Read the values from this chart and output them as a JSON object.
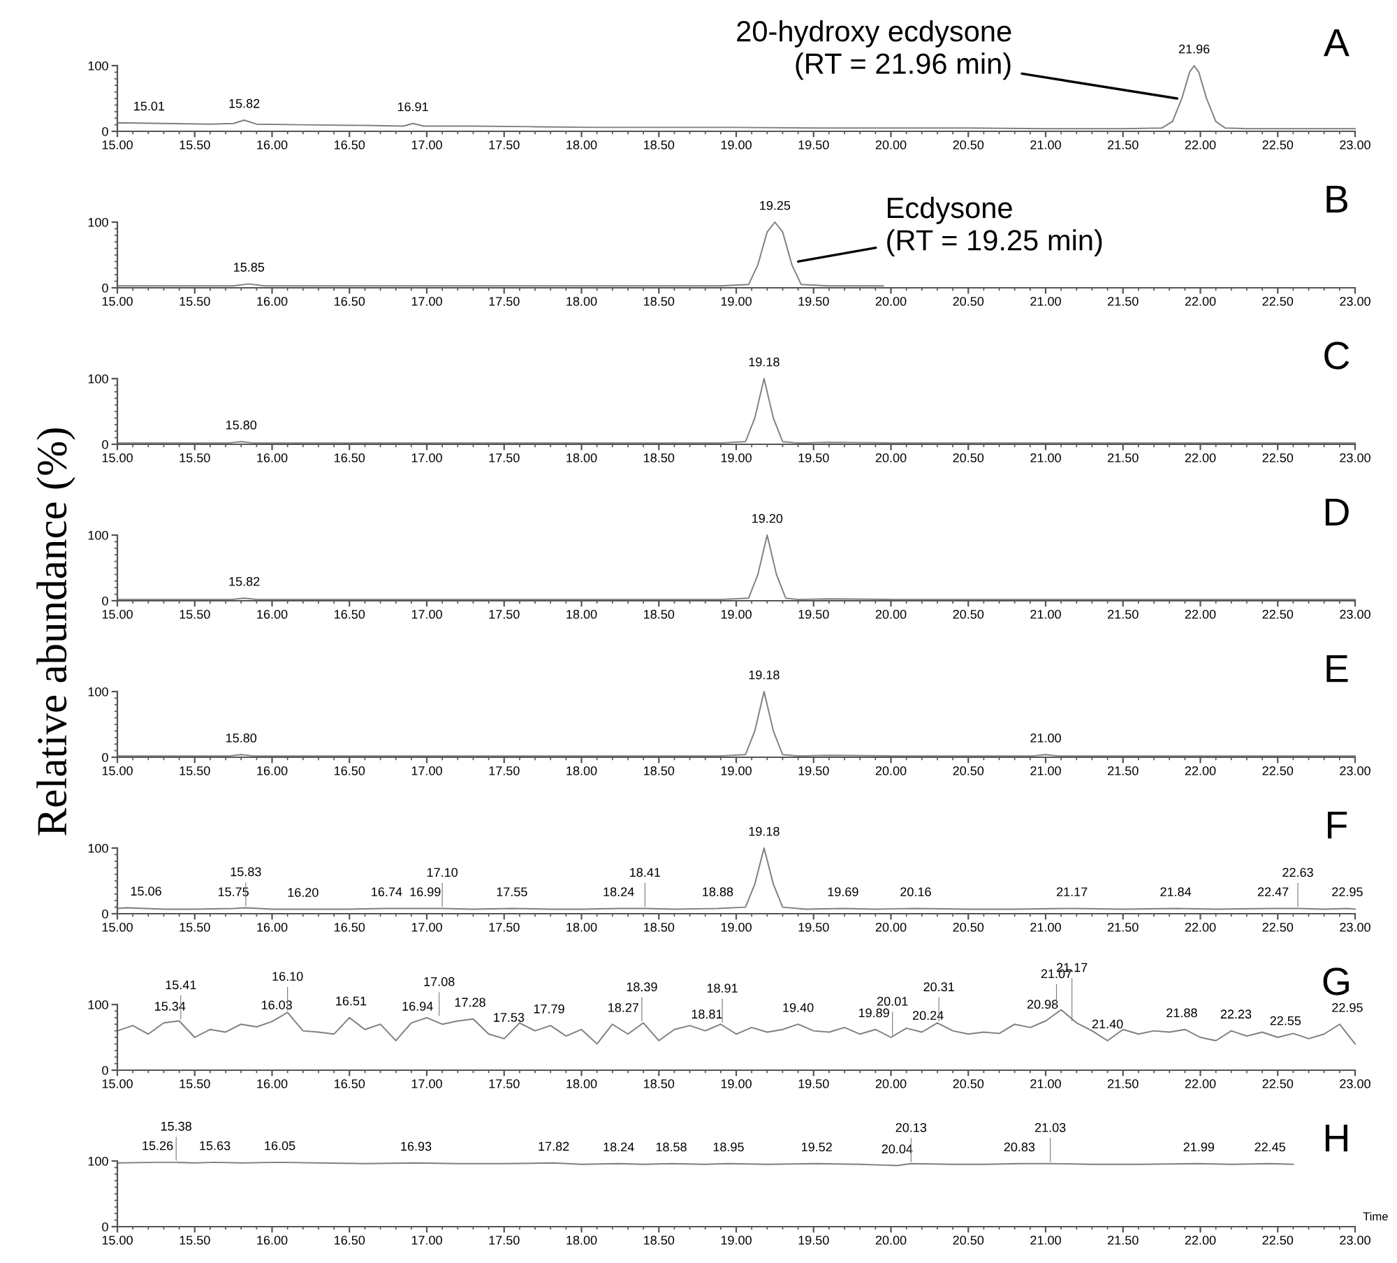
{
  "chart_data": [
    {
      "type": "line",
      "title": "A",
      "xlim": [
        15,
        23
      ],
      "ylim": [
        0,
        100
      ],
      "yticks": [
        0,
        100
      ],
      "xticks": [
        {
          "value": 15,
          "label": "15.00"
        },
        {
          "value": 15.5,
          "label": "15.50"
        },
        {
          "value": 16,
          "label": "16.00"
        },
        {
          "value": 16.5,
          "label": "16.50"
        },
        {
          "value": 17,
          "label": "17.00"
        },
        {
          "value": 17.5,
          "label": "17.50"
        },
        {
          "value": 18,
          "label": "18.00"
        },
        {
          "value": 18.5,
          "label": "18.50"
        },
        {
          "value": 19,
          "label": "19.00"
        },
        {
          "value": 19.5,
          "label": "19.50"
        },
        {
          "value": 20,
          "label": "20.00"
        },
        {
          "value": 20.5,
          "label": "20.50"
        },
        {
          "value": 21,
          "label": "21.00"
        },
        {
          "value": 21.5,
          "label": "21.50"
        },
        {
          "value": 22,
          "label": "22.00"
        },
        {
          "value": 22.5,
          "label": "22.50"
        },
        {
          "value": 23,
          "label": "23.00"
        }
      ],
      "series": [
        {
          "color": "#7f7f7f",
          "x": [
            15.0,
            15.01,
            15.3,
            15.6,
            15.75,
            15.82,
            15.9,
            16.2,
            16.6,
            16.85,
            16.91,
            16.98,
            17.3,
            17.7,
            18.1,
            18.5,
            19.0,
            19.5,
            20.0,
            20.5,
            21.0,
            21.5,
            21.75,
            21.82,
            21.88,
            21.93,
            21.96,
            21.99,
            22.04,
            22.1,
            22.16,
            22.3,
            22.6,
            23.0
          ],
          "values": [
            12,
            13,
            12,
            11,
            12,
            17,
            11,
            10,
            9,
            8,
            12,
            8,
            8,
            7,
            6,
            6,
            6,
            5,
            5,
            5,
            4,
            4,
            5,
            15,
            50,
            90,
            100,
            90,
            50,
            15,
            5,
            4,
            4,
            4
          ]
        }
      ],
      "annotations": [
        {
          "text": "15.01",
          "x": 15.01,
          "y": 13
        },
        {
          "text": "15.82",
          "x": 15.82,
          "y": 17
        },
        {
          "text": "16.91",
          "x": 16.91,
          "y": 12
        },
        {
          "text": "21.96",
          "x": 21.96,
          "y": 100
        },
        {
          "text": "20-hydroxy ecdysone\n(RT = 21.96 min)",
          "x": 21.85,
          "y": 50
        }
      ]
    },
    {
      "type": "line",
      "title": "B",
      "xlim": [
        15,
        23
      ],
      "ylim": [
        0,
        100
      ],
      "yticks": [
        0,
        100
      ],
      "xticks": [
        {
          "value": 15,
          "label": "15.00"
        },
        {
          "value": 15.5,
          "label": "15.50"
        },
        {
          "value": 16,
          "label": "16.00"
        },
        {
          "value": 16.5,
          "label": "16.50"
        },
        {
          "value": 17,
          "label": "17.00"
        },
        {
          "value": 17.5,
          "label": "17.50"
        },
        {
          "value": 18,
          "label": "18.00"
        },
        {
          "value": 18.5,
          "label": "18.50"
        },
        {
          "value": 19,
          "label": "19.00"
        },
        {
          "value": 19.5,
          "label": "19.50"
        },
        {
          "value": 20,
          "label": "20.00"
        },
        {
          "value": 20.5,
          "label": "20.50"
        },
        {
          "value": 21,
          "label": "21.00"
        },
        {
          "value": 21.5,
          "label": "21.50"
        },
        {
          "value": 22,
          "label": "22.00"
        },
        {
          "value": 22.5,
          "label": "22.50"
        },
        {
          "value": 23,
          "label": "23.00"
        }
      ],
      "series": [
        {
          "color": "#7f7f7f",
          "x": [
            15.0,
            15.4,
            15.75,
            15.85,
            15.95,
            16.5,
            17.0,
            17.5,
            18.0,
            18.5,
            18.9,
            19.08,
            19.14,
            19.2,
            19.25,
            19.3,
            19.36,
            19.42,
            19.6,
            19.95
          ],
          "values": [
            3,
            3,
            3,
            6,
            3,
            3,
            3,
            3,
            3,
            3,
            3,
            5,
            35,
            85,
            100,
            85,
            35,
            5,
            3,
            3
          ]
        }
      ],
      "annotations": [
        {
          "text": "15.85",
          "x": 15.85,
          "y": 6
        },
        {
          "text": "19.25",
          "x": 19.25,
          "y": 100
        },
        {
          "text": "Ecdysone\n(RT = 19.25 min)",
          "x": 19.4,
          "y": 40
        }
      ]
    },
    {
      "type": "line",
      "title": "C",
      "xlim": [
        15,
        23
      ],
      "ylim": [
        0,
        100
      ],
      "yticks": [
        0,
        100
      ],
      "xticks": [
        {
          "value": 15,
          "label": "15.00"
        },
        {
          "value": 15.5,
          "label": "15.50"
        },
        {
          "value": 16,
          "label": "16.00"
        },
        {
          "value": 16.5,
          "label": "16.50"
        },
        {
          "value": 17,
          "label": "17.00"
        },
        {
          "value": 17.5,
          "label": "17.50"
        },
        {
          "value": 18,
          "label": "18.00"
        },
        {
          "value": 18.5,
          "label": "18.50"
        },
        {
          "value": 19,
          "label": "19.00"
        },
        {
          "value": 19.5,
          "label": "19.50"
        },
        {
          "value": 20,
          "label": "20.00"
        },
        {
          "value": 20.5,
          "label": "20.50"
        },
        {
          "value": 21,
          "label": "21.00"
        },
        {
          "value": 21.5,
          "label": "21.50"
        },
        {
          "value": 22,
          "label": "22.00"
        },
        {
          "value": 22.5,
          "label": "22.50"
        },
        {
          "value": 23,
          "label": "23.00"
        }
      ],
      "series": [
        {
          "color": "#7f7f7f",
          "x": [
            15.0,
            15.5,
            15.72,
            15.8,
            15.88,
            16.5,
            17.0,
            17.5,
            18.0,
            18.5,
            18.9,
            19.06,
            19.12,
            19.18,
            19.24,
            19.3,
            19.4,
            19.6,
            20.0,
            20.5,
            21.0,
            21.5,
            22.0,
            22.5,
            23.0
          ],
          "values": [
            2,
            2,
            2,
            4,
            2,
            2,
            2,
            2,
            2,
            2,
            2,
            4,
            40,
            100,
            40,
            4,
            2,
            3,
            2,
            2,
            2,
            2,
            2,
            2,
            2
          ]
        }
      ],
      "annotations": [
        {
          "text": "15.80",
          "x": 15.8,
          "y": 4
        },
        {
          "text": "19.18",
          "x": 19.18,
          "y": 100
        }
      ]
    },
    {
      "type": "line",
      "title": "D",
      "ylabel": "Relative abundance (%)",
      "xlim": [
        15,
        23
      ],
      "ylim": [
        0,
        100
      ],
      "yticks": [
        0,
        100
      ],
      "xticks": [
        {
          "value": 15,
          "label": "15.00"
        },
        {
          "value": 15.5,
          "label": "15.50"
        },
        {
          "value": 16,
          "label": "16.00"
        },
        {
          "value": 16.5,
          "label": "16.50"
        },
        {
          "value": 17,
          "label": "17.00"
        },
        {
          "value": 17.5,
          "label": "17.50"
        },
        {
          "value": 18,
          "label": "18.00"
        },
        {
          "value": 18.5,
          "label": "18.50"
        },
        {
          "value": 19,
          "label": "19.00"
        },
        {
          "value": 19.5,
          "label": "19.50"
        },
        {
          "value": 20,
          "label": "20.00"
        },
        {
          "value": 20.5,
          "label": "20.50"
        },
        {
          "value": 21,
          "label": "21.00"
        },
        {
          "value": 21.5,
          "label": "21.50"
        },
        {
          "value": 22,
          "label": "22.00"
        },
        {
          "value": 22.5,
          "label": "22.50"
        },
        {
          "value": 23,
          "label": "23.00"
        }
      ],
      "series": [
        {
          "color": "#7f7f7f",
          "x": [
            15.0,
            15.5,
            15.74,
            15.82,
            15.9,
            16.5,
            17.0,
            17.5,
            18.0,
            18.5,
            18.9,
            19.08,
            19.14,
            19.2,
            19.26,
            19.32,
            19.4,
            19.6,
            20.0,
            20.5,
            21.0,
            21.5,
            22.0,
            22.5,
            23.0
          ],
          "values": [
            2,
            2,
            2,
            4,
            2,
            2,
            2,
            2,
            2,
            2,
            2,
            4,
            40,
            100,
            40,
            4,
            2,
            3,
            2,
            2,
            2,
            2,
            2,
            2,
            2
          ]
        }
      ],
      "annotations": [
        {
          "text": "15.82",
          "x": 15.82,
          "y": 4
        },
        {
          "text": "19.20",
          "x": 19.2,
          "y": 100
        }
      ]
    },
    {
      "type": "line",
      "title": "E",
      "xlim": [
        15,
        23
      ],
      "ylim": [
        0,
        100
      ],
      "yticks": [
        0,
        100
      ],
      "xticks": [
        {
          "value": 15,
          "label": "15.00"
        },
        {
          "value": 15.5,
          "label": "15.50"
        },
        {
          "value": 16,
          "label": "16.00"
        },
        {
          "value": 16.5,
          "label": "16.50"
        },
        {
          "value": 17,
          "label": "17.00"
        },
        {
          "value": 17.5,
          "label": "17.50"
        },
        {
          "value": 18,
          "label": "18.00"
        },
        {
          "value": 18.5,
          "label": "18.50"
        },
        {
          "value": 19,
          "label": "19.00"
        },
        {
          "value": 19.5,
          "label": "19.50"
        },
        {
          "value": 20,
          "label": "20.00"
        },
        {
          "value": 20.5,
          "label": "20.50"
        },
        {
          "value": 21,
          "label": "21.00"
        },
        {
          "value": 21.5,
          "label": "21.50"
        },
        {
          "value": 22,
          "label": "22.00"
        },
        {
          "value": 22.5,
          "label": "22.50"
        },
        {
          "value": 23,
          "label": "23.00"
        }
      ],
      "series": [
        {
          "color": "#7f7f7f",
          "x": [
            15.0,
            15.5,
            15.72,
            15.8,
            15.88,
            16.5,
            17.0,
            17.5,
            18.0,
            18.5,
            18.9,
            19.06,
            19.12,
            19.18,
            19.24,
            19.3,
            19.4,
            19.6,
            20.0,
            20.5,
            20.92,
            21.0,
            21.08,
            21.5,
            22.0,
            22.5,
            23.0
          ],
          "values": [
            2,
            2,
            2,
            4,
            2,
            2,
            2,
            2,
            2,
            2,
            2,
            4,
            40,
            100,
            40,
            4,
            2,
            3,
            2,
            2,
            2,
            4,
            2,
            2,
            2,
            2,
            2
          ]
        }
      ],
      "annotations": [
        {
          "text": "15.80",
          "x": 15.8,
          "y": 4
        },
        {
          "text": "19.18",
          "x": 19.18,
          "y": 100
        },
        {
          "text": "21.00",
          "x": 21.0,
          "y": 4
        }
      ]
    },
    {
      "type": "line",
      "title": "F",
      "xlim": [
        15,
        23
      ],
      "ylim": [
        0,
        100
      ],
      "yticks": [
        0,
        100
      ],
      "xticks": [
        {
          "value": 15,
          "label": "15.00"
        },
        {
          "value": 15.5,
          "label": "15.50"
        },
        {
          "value": 16,
          "label": "16.00"
        },
        {
          "value": 16.5,
          "label": "16.50"
        },
        {
          "value": 17,
          "label": "17.00"
        },
        {
          "value": 17.5,
          "label": "17.50"
        },
        {
          "value": 18,
          "label": "18.00"
        },
        {
          "value": 18.5,
          "label": "18.50"
        },
        {
          "value": 19,
          "label": "19.00"
        },
        {
          "value": 19.5,
          "label": "19.50"
        },
        {
          "value": 20,
          "label": "20.00"
        },
        {
          "value": 20.5,
          "label": "20.50"
        },
        {
          "value": 21,
          "label": "21.00"
        },
        {
          "value": 21.5,
          "label": "21.50"
        },
        {
          "value": 22,
          "label": "22.00"
        },
        {
          "value": 22.5,
          "label": "22.50"
        },
        {
          "value": 23,
          "label": "23.00"
        }
      ],
      "series": [
        {
          "color": "#7f7f7f",
          "x": [
            15.0,
            15.06,
            15.3,
            15.5,
            15.75,
            15.83,
            16.0,
            16.2,
            16.5,
            16.74,
            16.99,
            17.1,
            17.3,
            17.55,
            17.8,
            18.0,
            18.24,
            18.41,
            18.6,
            18.88,
            19.06,
            19.12,
            19.18,
            19.24,
            19.3,
            19.45,
            19.69,
            19.9,
            20.16,
            20.5,
            20.8,
            21.17,
            21.5,
            21.84,
            22.1,
            22.47,
            22.63,
            22.8,
            22.95,
            23.0
          ],
          "values": [
            8,
            9,
            7,
            7,
            8,
            9,
            7,
            7,
            7,
            8,
            8,
            8,
            7,
            8,
            7,
            7,
            8,
            8,
            7,
            8,
            10,
            45,
            100,
            45,
            10,
            7,
            8,
            7,
            8,
            7,
            7,
            8,
            7,
            8,
            7,
            8,
            8,
            7,
            8,
            7
          ]
        }
      ],
      "annotations": [
        {
          "text": "15.06",
          "x": 15.06,
          "y": 9
        },
        {
          "text": "15.75",
          "x": 15.75,
          "y": 8
        },
        {
          "text": "15.83",
          "x": 15.83,
          "y": 9
        },
        {
          "text": "16.20",
          "x": 16.2,
          "y": 7
        },
        {
          "text": "16.74",
          "x": 16.74,
          "y": 8
        },
        {
          "text": "16.99",
          "x": 16.99,
          "y": 8
        },
        {
          "text": "17.10",
          "x": 17.1,
          "y": 8
        },
        {
          "text": "17.55",
          "x": 17.55,
          "y": 8
        },
        {
          "text": "18.24",
          "x": 18.24,
          "y": 8
        },
        {
          "text": "18.41",
          "x": 18.41,
          "y": 8
        },
        {
          "text": "18.88",
          "x": 18.88,
          "y": 8
        },
        {
          "text": "19.18",
          "x": 19.18,
          "y": 100
        },
        {
          "text": "19.69",
          "x": 19.69,
          "y": 8
        },
        {
          "text": "20.16",
          "x": 20.16,
          "y": 8
        },
        {
          "text": "21.17",
          "x": 21.17,
          "y": 8
        },
        {
          "text": "21.84",
          "x": 21.84,
          "y": 8
        },
        {
          "text": "22.47",
          "x": 22.47,
          "y": 8
        },
        {
          "text": "22.63",
          "x": 22.63,
          "y": 8
        },
        {
          "text": "22.95",
          "x": 22.95,
          "y": 8
        }
      ]
    },
    {
      "type": "line",
      "title": "G",
      "xlim": [
        15,
        23
      ],
      "ylim": [
        0,
        100
      ],
      "yticks": [
        0,
        100
      ],
      "xticks": [
        {
          "value": 15,
          "label": "15.00"
        },
        {
          "value": 15.5,
          "label": "15.50"
        },
        {
          "value": 16,
          "label": "16.00"
        },
        {
          "value": 16.5,
          "label": "16.50"
        },
        {
          "value": 17,
          "label": "17.00"
        },
        {
          "value": 17.5,
          "label": "17.50"
        },
        {
          "value": 18,
          "label": "18.00"
        },
        {
          "value": 18.5,
          "label": "18.50"
        },
        {
          "value": 19,
          "label": "19.00"
        },
        {
          "value": 19.5,
          "label": "19.50"
        },
        {
          "value": 20,
          "label": "20.00"
        },
        {
          "value": 20.5,
          "label": "20.50"
        },
        {
          "value": 21,
          "label": "21.00"
        },
        {
          "value": 21.5,
          "label": "21.50"
        },
        {
          "value": 22,
          "label": "22.00"
        },
        {
          "value": 22.5,
          "label": "22.50"
        },
        {
          "value": 23,
          "label": "23.00"
        }
      ],
      "series": [
        {
          "color": "#7f7f7f",
          "x": [
            15.0,
            15.1,
            15.2,
            15.3,
            15.4,
            15.5,
            15.6,
            15.7,
            15.8,
            15.9,
            16.0,
            16.1,
            16.2,
            16.3,
            16.4,
            16.5,
            16.6,
            16.7,
            16.8,
            16.9,
            17.0,
            17.1,
            17.2,
            17.3,
            17.4,
            17.5,
            17.6,
            17.7,
            17.8,
            17.9,
            18.0,
            18.1,
            18.2,
            18.3,
            18.4,
            18.5,
            18.6,
            18.7,
            18.8,
            18.9,
            19.0,
            19.1,
            19.2,
            19.3,
            19.4,
            19.5,
            19.6,
            19.7,
            19.8,
            19.9,
            20.0,
            20.1,
            20.2,
            20.3,
            20.4,
            20.5,
            20.6,
            20.7,
            20.8,
            20.9,
            21.0,
            21.1,
            21.2,
            21.3,
            21.4,
            21.5,
            21.6,
            21.7,
            21.8,
            21.9,
            22.0,
            22.1,
            22.2,
            22.3,
            22.4,
            22.5,
            22.6,
            22.7,
            22.8,
            22.9,
            23.0
          ],
          "values": [
            60,
            68,
            55,
            72,
            75,
            50,
            62,
            58,
            70,
            66,
            74,
            88,
            60,
            58,
            55,
            80,
            62,
            70,
            45,
            72,
            80,
            70,
            75,
            78,
            55,
            48,
            72,
            60,
            68,
            52,
            62,
            40,
            70,
            55,
            72,
            45,
            62,
            68,
            60,
            70,
            55,
            65,
            58,
            62,
            70,
            60,
            58,
            65,
            55,
            62,
            50,
            64,
            58,
            72,
            60,
            55,
            58,
            56,
            70,
            65,
            75,
            92,
            72,
            60,
            45,
            62,
            55,
            60,
            58,
            62,
            50,
            45,
            60,
            52,
            58,
            50,
            56,
            48,
            55,
            70,
            40
          ]
        }
      ],
      "annotations": [
        {
          "text": "15.34",
          "x": 15.34,
          "y": 72
        },
        {
          "text": "15.41",
          "x": 15.41,
          "y": 75
        },
        {
          "text": "16.03",
          "x": 16.03,
          "y": 74
        },
        {
          "text": "16.10",
          "x": 16.1,
          "y": 88
        },
        {
          "text": "16.51",
          "x": 16.51,
          "y": 80
        },
        {
          "text": "16.94",
          "x": 16.94,
          "y": 72
        },
        {
          "text": "17.08",
          "x": 17.08,
          "y": 80
        },
        {
          "text": "17.28",
          "x": 17.28,
          "y": 78
        },
        {
          "text": "17.53",
          "x": 17.53,
          "y": 55
        },
        {
          "text": "17.79",
          "x": 17.79,
          "y": 68
        },
        {
          "text": "18.27",
          "x": 18.27,
          "y": 70
        },
        {
          "text": "18.39",
          "x": 18.39,
          "y": 72
        },
        {
          "text": "18.81",
          "x": 18.81,
          "y": 60
        },
        {
          "text": "18.91",
          "x": 18.91,
          "y": 70
        },
        {
          "text": "19.40",
          "x": 19.4,
          "y": 70
        },
        {
          "text": "19.89",
          "x": 19.89,
          "y": 62
        },
        {
          "text": "20.01",
          "x": 20.01,
          "y": 50
        },
        {
          "text": "20.24",
          "x": 20.24,
          "y": 58
        },
        {
          "text": "20.31",
          "x": 20.31,
          "y": 72
        },
        {
          "text": "20.98",
          "x": 20.98,
          "y": 75
        },
        {
          "text": "21.07",
          "x": 21.07,
          "y": 92
        },
        {
          "text": "21.17",
          "x": 21.17,
          "y": 72
        },
        {
          "text": "21.40",
          "x": 21.4,
          "y": 45
        },
        {
          "text": "21.88",
          "x": 21.88,
          "y": 62
        },
        {
          "text": "22.23",
          "x": 22.23,
          "y": 60
        },
        {
          "text": "22.55",
          "x": 22.55,
          "y": 50
        },
        {
          "text": "22.95",
          "x": 22.95,
          "y": 70
        }
      ]
    },
    {
      "type": "line",
      "title": "H",
      "xlabel": "Time",
      "xlim": [
        15,
        23
      ],
      "ylim": [
        0,
        100
      ],
      "yticks": [
        0,
        100
      ],
      "xticks": [
        {
          "value": 15,
          "label": "15.00"
        },
        {
          "value": 15.5,
          "label": "15.50"
        },
        {
          "value": 16,
          "label": "16.00"
        },
        {
          "value": 16.5,
          "label": "16.50"
        },
        {
          "value": 17,
          "label": "17.00"
        },
        {
          "value": 17.5,
          "label": "17.50"
        },
        {
          "value": 18,
          "label": "18.00"
        },
        {
          "value": 18.5,
          "label": "18.50"
        },
        {
          "value": 19,
          "label": "19.00"
        },
        {
          "value": 19.5,
          "label": "19.50"
        },
        {
          "value": 20,
          "label": "20.00"
        },
        {
          "value": 20.5,
          "label": "20.50"
        },
        {
          "value": 21,
          "label": "21.00"
        },
        {
          "value": 21.5,
          "label": "21.50"
        },
        {
          "value": 22,
          "label": "22.00"
        },
        {
          "value": 22.5,
          "label": "22.50"
        },
        {
          "value": 23,
          "label": "23.00"
        }
      ],
      "series": [
        {
          "color": "#7f7f7f",
          "x": [
            15.0,
            15.26,
            15.38,
            15.5,
            15.63,
            15.8,
            16.05,
            16.3,
            16.6,
            16.93,
            17.2,
            17.5,
            17.82,
            18.0,
            18.24,
            18.4,
            18.58,
            18.8,
            18.95,
            19.2,
            19.52,
            19.8,
            20.04,
            20.13,
            20.4,
            20.6,
            20.83,
            21.03,
            21.3,
            21.6,
            21.99,
            22.2,
            22.45,
            22.6
          ],
          "values": [
            97,
            98,
            98,
            97,
            98,
            97,
            98,
            97,
            96,
            97,
            96,
            96,
            97,
            95,
            96,
            95,
            96,
            95,
            96,
            95,
            96,
            95,
            93,
            96,
            95,
            95,
            96,
            96,
            95,
            95,
            96,
            95,
            96,
            95
          ]
        }
      ],
      "annotations": [
        {
          "text": "15.26",
          "x": 15.26,
          "y": 98
        },
        {
          "text": "15.38",
          "x": 15.38,
          "y": 98
        },
        {
          "text": "15.63",
          "x": 15.63,
          "y": 98
        },
        {
          "text": "16.05",
          "x": 16.05,
          "y": 98
        },
        {
          "text": "16.93",
          "x": 16.93,
          "y": 97
        },
        {
          "text": "17.82",
          "x": 17.82,
          "y": 97
        },
        {
          "text": "18.24",
          "x": 18.24,
          "y": 96
        },
        {
          "text": "18.58",
          "x": 18.58,
          "y": 96
        },
        {
          "text": "18.95",
          "x": 18.95,
          "y": 96
        },
        {
          "text": "19.52",
          "x": 19.52,
          "y": 96
        },
        {
          "text": "20.04",
          "x": 20.04,
          "y": 93
        },
        {
          "text": "20.13",
          "x": 20.13,
          "y": 96
        },
        {
          "text": "20.83",
          "x": 20.83,
          "y": 96
        },
        {
          "text": "21.03",
          "x": 21.03,
          "y": 96
        },
        {
          "text": "21.99",
          "x": 21.99,
          "y": 96
        },
        {
          "text": "22.45",
          "x": 22.45,
          "y": 96
        }
      ]
    }
  ]
}
